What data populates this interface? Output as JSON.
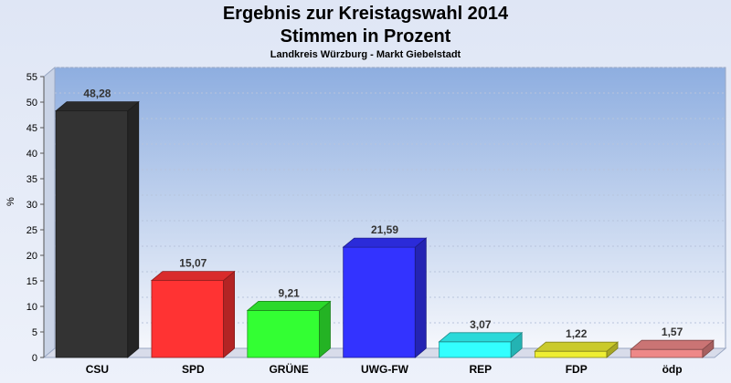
{
  "chart_data": {
    "type": "bar",
    "title": "Ergebnis zur Kreistagswahl 2014",
    "subtitle_line": "Stimmen in Prozent",
    "caption": "Landkreis Würzburg - Markt Giebelstadt",
    "ylabel": "%",
    "xlabel": "",
    "ylim": [
      0,
      55
    ],
    "yticks": [
      0,
      5,
      10,
      15,
      20,
      25,
      30,
      35,
      40,
      45,
      50,
      55
    ],
    "grid": true,
    "categories": [
      "CSU",
      "SPD",
      "GRÜNE",
      "UWG-FW",
      "REP",
      "FDP",
      "ödp"
    ],
    "values": [
      48.28,
      15.07,
      9.21,
      21.59,
      3.07,
      1.22,
      1.57
    ],
    "value_labels": [
      "48,28",
      "15,07",
      "9,21",
      "21,59",
      "3,07",
      "1,22",
      "1,57"
    ],
    "colors": [
      "#333333",
      "#ff3333",
      "#33ff33",
      "#3333ff",
      "#33ffff",
      "#eeee33",
      "#ee8888"
    ]
  }
}
